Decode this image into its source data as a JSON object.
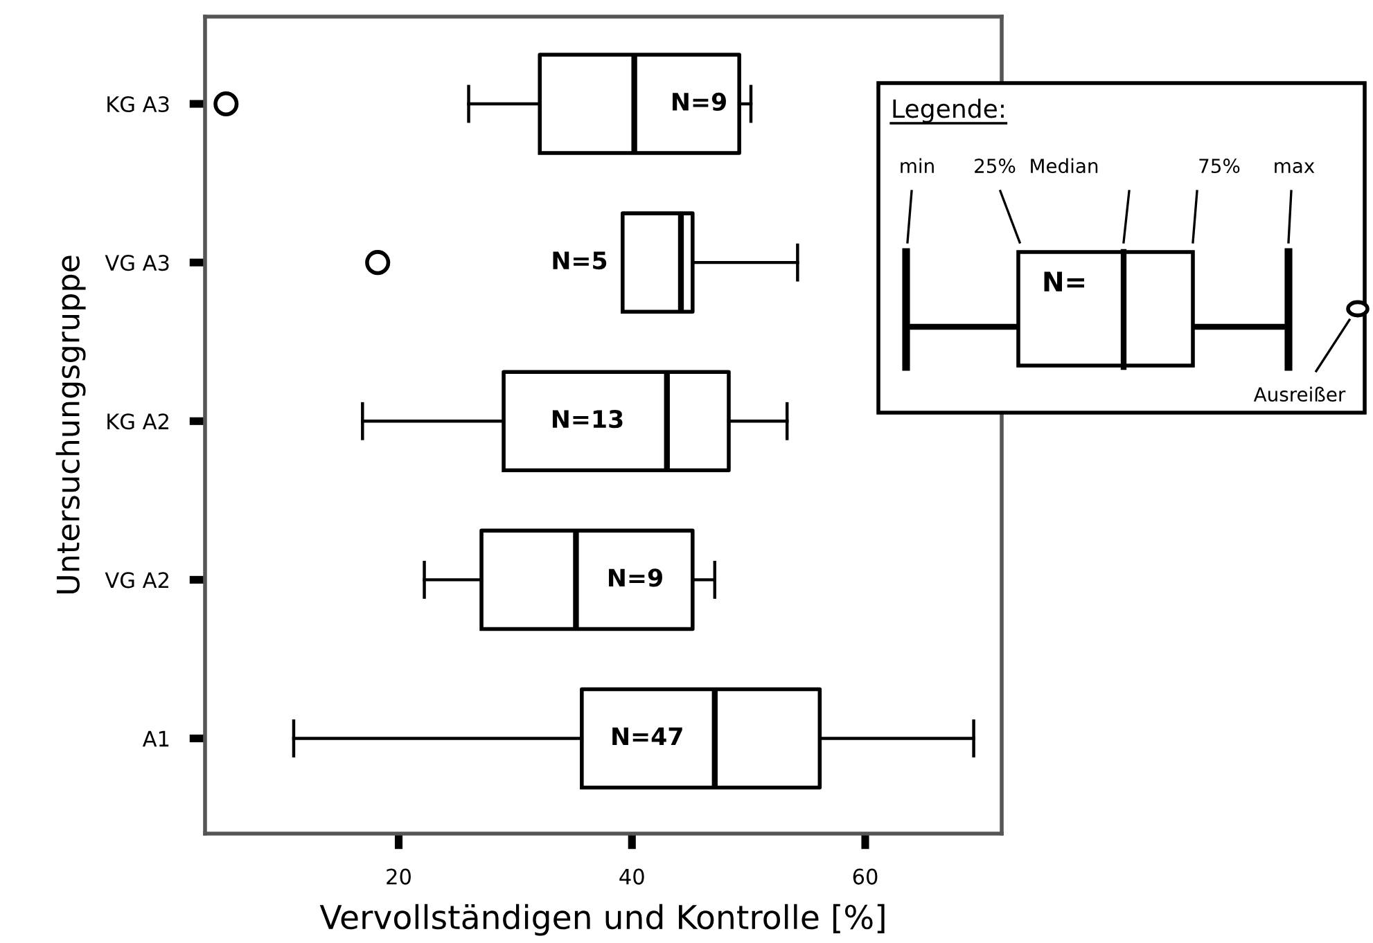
{
  "chart_data": {
    "type": "box",
    "orientation": "horizontal",
    "xlabel": "Vervollständigen und Kontrolle [%]",
    "ylabel": "Untersuchungsgruppe",
    "categories": [
      "KG A3",
      "VG A3",
      "KG A2",
      "VG A2",
      "A1"
    ],
    "boxes": [
      {
        "low": 26.0,
        "q1": 32.1,
        "median": 40.2,
        "q3": 49.2,
        "high": 50.2,
        "outliers": [
          5.2
        ]
      },
      {
        "low": 39.2,
        "q1": 39.2,
        "median": 44.2,
        "q3": 45.2,
        "high": 54.2,
        "outliers": [
          18.2
        ]
      },
      {
        "low": 16.9,
        "q1": 29.0,
        "median": 43.0,
        "q3": 48.3,
        "high": 53.3
      },
      {
        "low": 22.2,
        "q1": 27.1,
        "median": 35.2,
        "q3": 45.2,
        "high": 47.1
      },
      {
        "low": 11.0,
        "q1": 35.7,
        "median": 47.1,
        "q3": 56.1,
        "high": 69.3
      }
    ],
    "xlim": [
      3.4,
      71.7
    ],
    "xticks": [
      20,
      40,
      60
    ],
    "grid": false,
    "annotations": [
      "N=9",
      "N=5",
      "N=13",
      "N=9",
      "N=47",
      "Legende:",
      "min",
      "25%",
      "Median",
      "75%",
      "max",
      "N=",
      "Ausreißer"
    ]
  }
}
